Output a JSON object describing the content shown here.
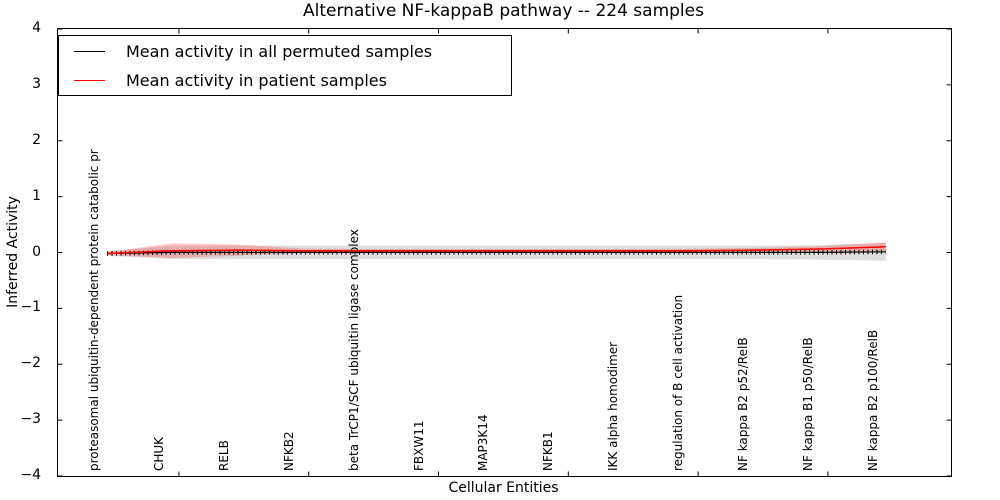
{
  "title": "Alternative NF-kappaB pathway -- 224 samples",
  "axes": {
    "xlabel": "Cellular Entities",
    "ylabel": "Inferred Activity"
  },
  "chart_data": {
    "type": "line",
    "title": "Alternative NF-kappaB pathway -- 224 samples",
    "xlabel": "Cellular Entities",
    "ylabel": "Inferred Activity",
    "ylim": [
      -4,
      4
    ],
    "yticks": [
      4,
      3,
      2,
      1,
      0,
      -1,
      -2,
      -3,
      -4
    ],
    "grid": false,
    "legend_position": "upper left",
    "categories": [
      "proteasomal ubiquitin-dependent protein catabolic pr",
      "CHUK",
      "RELB",
      "NFKB2",
      "beta TrCP1/SCF ubiquitin ligase complex",
      "FBXW11",
      "MAP3K14",
      "NFKB1",
      "IKK alpha homodimer",
      "regulation of B cell activation",
      "NF kappa B2 p52/RelB",
      "NF kappa B1 p50/RelB",
      "NF kappa B2 p100/RelB"
    ],
    "labeled_tick_indices": [
      1,
      3,
      5,
      7,
      9,
      11
    ],
    "series": [
      {
        "name": "Mean activity in all permuted samples",
        "color": "#000000",
        "band_color": "rgba(0,0,0,0.13)",
        "values": [
          0.0,
          0.02,
          0.02,
          0.02,
          0.02,
          0.02,
          0.02,
          0.02,
          0.02,
          0.02,
          0.02,
          0.02,
          0.03
        ],
        "band_halfwidth": [
          0.04,
          0.12,
          0.12,
          0.12,
          0.12,
          0.12,
          0.12,
          0.12,
          0.12,
          0.12,
          0.12,
          0.13,
          0.16
        ]
      },
      {
        "name": "Mean activity in patient samples",
        "color": "#ff0000",
        "band_color": "rgba(255,0,0,0.22)",
        "values": [
          0.0,
          0.05,
          0.06,
          0.05,
          0.05,
          0.05,
          0.05,
          0.05,
          0.05,
          0.05,
          0.06,
          0.08,
          0.12
        ],
        "band_halfwidth": [
          0.03,
          0.13,
          0.1,
          0.04,
          0.03,
          0.03,
          0.03,
          0.03,
          0.03,
          0.035,
          0.04,
          0.05,
          0.08
        ]
      }
    ]
  }
}
